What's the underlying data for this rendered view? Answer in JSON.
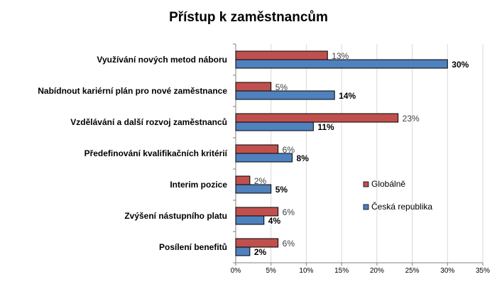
{
  "chart_data": {
    "type": "bar",
    "orientation": "horizontal",
    "title": "Přístup k zaměstnancům",
    "categories": [
      "Využívání nových metod náboru",
      "Nabídnout kariérní plán pro nové zaměstnance",
      "Vzdělávání a další rozvoj zaměstnanců",
      "Předefinování kvalifikačních kritérií",
      "Interim pozice",
      "Zvýšení nástupního platu",
      "Posílení benefitů"
    ],
    "series": [
      {
        "name": "Globálně",
        "values": [
          13,
          5,
          23,
          6,
          2,
          6,
          6
        ],
        "labels": [
          "13%",
          "5%",
          "23%",
          "6%",
          "2%",
          "6%",
          "6%"
        ],
        "color": "#c0504d"
      },
      {
        "name": "Česká republika",
        "values": [
          30,
          14,
          11,
          8,
          5,
          4,
          2
        ],
        "labels": [
          "30%",
          "14%",
          "11%",
          "8%",
          "5%",
          "4%",
          "2%"
        ],
        "color": "#4f81bd"
      }
    ],
    "xlim": [
      0,
      35
    ],
    "ticks": [
      "0%",
      "5%",
      "10%",
      "15%",
      "20%",
      "25%",
      "30%",
      "35%"
    ],
    "legend_position": "right",
    "grid": "vertical"
  }
}
